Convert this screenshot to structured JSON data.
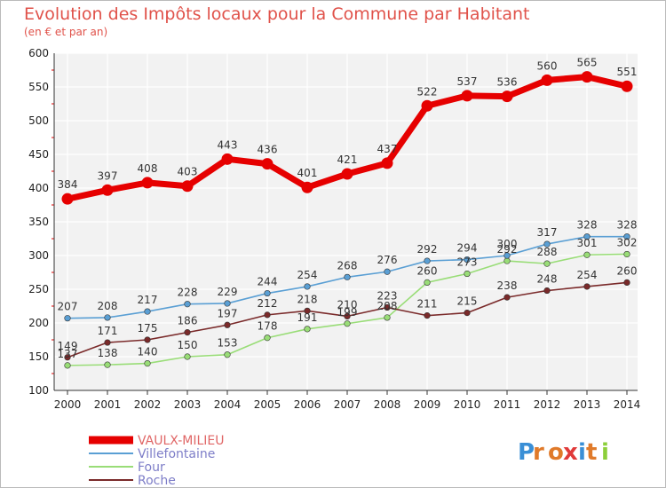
{
  "chart_data": {
    "type": "line",
    "title": "Evolution des Impôts locaux pour la Commune par Habitant",
    "subtitle": "(en € et par an)",
    "xlabel": "",
    "ylabel": "",
    "ylim": [
      100,
      600
    ],
    "yticks": [
      100,
      150,
      200,
      250,
      300,
      350,
      400,
      450,
      500,
      550,
      600
    ],
    "x": [
      2000,
      2001,
      2002,
      2003,
      2004,
      2005,
      2006,
      2007,
      2008,
      2009,
      2010,
      2011,
      2012,
      2013,
      2014
    ],
    "grid": true,
    "legend_position": "bottom-left",
    "series": [
      {
        "name": "VAULX-MILIEU",
        "color": "#e60000",
        "values": [
          384,
          397,
          408,
          403,
          443,
          436,
          401,
          421,
          437,
          522,
          537,
          536,
          560,
          565,
          551
        ]
      },
      {
        "name": "Villefontaine",
        "color": "#5a9fd4",
        "values": [
          207,
          208,
          217,
          228,
          229,
          244,
          254,
          268,
          276,
          292,
          294,
          300,
          317,
          328,
          328
        ]
      },
      {
        "name": "Four",
        "color": "#99dd77",
        "values": [
          137,
          138,
          140,
          150,
          153,
          178,
          191,
          199,
          208,
          260,
          273,
          292,
          288,
          301,
          302
        ]
      },
      {
        "name": "Roche",
        "color": "#7a2a2a",
        "values": [
          149,
          171,
          175,
          186,
          197,
          212,
          218,
          210,
          223,
          211,
          215,
          238,
          248,
          254,
          260
        ]
      }
    ]
  },
  "brand": {
    "logo_text": "Proxiti"
  }
}
